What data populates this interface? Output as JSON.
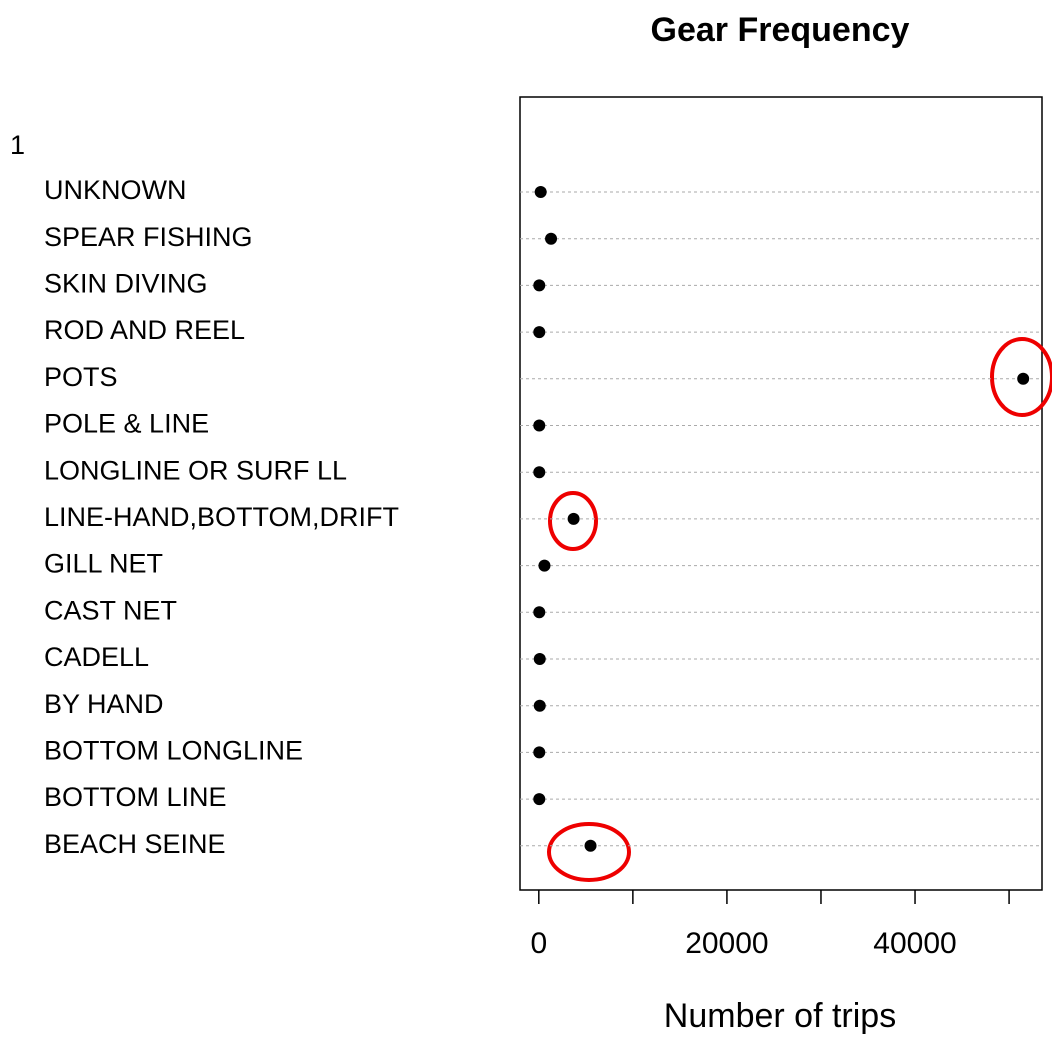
{
  "chart_data": {
    "type": "dot",
    "title": "Gear Frequency",
    "xlabel": "Number of trips",
    "group": "1",
    "categories": [
      "UNKNOWN",
      "SPEAR FISHING",
      "SKIN DIVING",
      "ROD AND REEL",
      "POTS",
      "POLE & LINE",
      "LONGLINE OR SURF LL",
      "LINE-HAND,BOTTOM,DRIFT",
      "GILL NET",
      "CAST NET",
      "CADELL",
      "BY HAND",
      "BOTTOM LONGLINE",
      "BOTTOM LINE",
      "BEACH SEINE"
    ],
    "values": [
      200,
      1300,
      50,
      50,
      51500,
      50,
      50,
      3700,
      600,
      50,
      100,
      100,
      50,
      50,
      5500
    ],
    "color": "#000000",
    "xlim": [
      -2000,
      53500
    ],
    "xticks": [
      0,
      20000,
      40000
    ],
    "xminor_ticks": [
      10000,
      30000,
      50000
    ],
    "grid": true
  }
}
